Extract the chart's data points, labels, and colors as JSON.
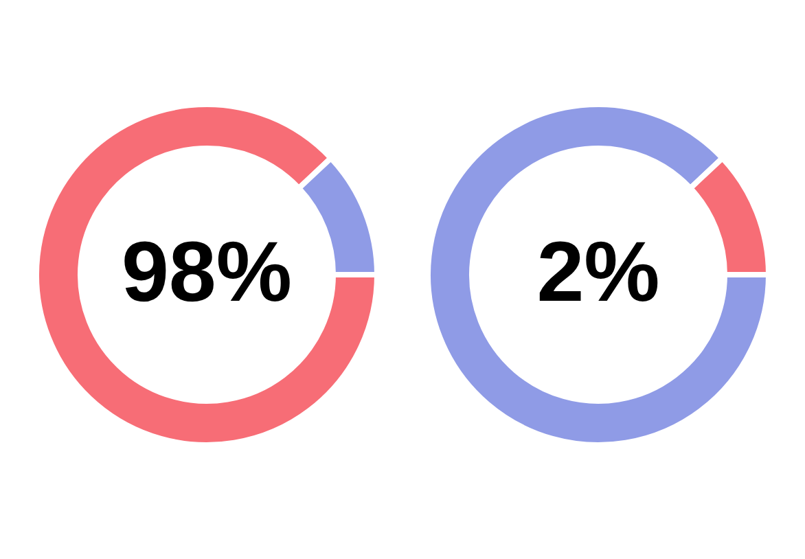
{
  "chart_data": [
    {
      "type": "donut",
      "categories": [
        null,
        null
      ],
      "values": [
        88,
        12
      ],
      "colors": [
        "#f76d76",
        "#8f9be6"
      ],
      "annotations": [
        "98%"
      ]
    },
    {
      "type": "donut",
      "categories": [
        null,
        null
      ],
      "values": [
        88,
        12
      ],
      "colors": [
        "#8f9be6",
        "#f76d76"
      ],
      "annotations": [
        "2%"
      ]
    }
  ]
}
